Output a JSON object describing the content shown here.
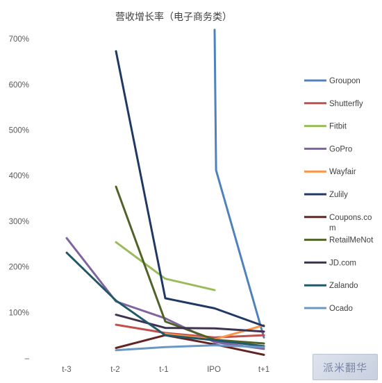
{
  "chart_data": {
    "type": "line",
    "title": "营收增长率（电子商务类）",
    "categories": [
      "t-3",
      "t-2",
      "t-1",
      "IPO",
      "t+1"
    ],
    "y_ticks": [
      "–",
      "100%",
      "200%",
      "300%",
      "400%",
      "500%",
      "600%",
      "700%"
    ],
    "ylim": [
      0,
      700
    ],
    "grid": false,
    "legend_position": "right",
    "series": [
      {
        "name": "Groupon",
        "color": "#4f81bd",
        "values": [
          null,
          null,
          null,
          720,
          45
        ],
        "extra_points": [
          {
            "x": 3.03,
            "y": 412
          }
        ]
      },
      {
        "name": "Shutterfly",
        "color": "#c0504d",
        "values": [
          null,
          73,
          55,
          45,
          50
        ]
      },
      {
        "name": "Fitbit",
        "color": "#9bbb59",
        "values": [
          null,
          254,
          174,
          149,
          null
        ]
      },
      {
        "name": "GoPro",
        "color": "#8064a2",
        "values": [
          263,
          124,
          87,
          35,
          20
        ]
      },
      {
        "name": "Wayfair",
        "color": "#f79646",
        "values": [
          null,
          null,
          53,
          41,
          72
        ]
      },
      {
        "name": "Zulily",
        "color": "#1f3864",
        "values": [
          null,
          673,
          131,
          109,
          70
        ]
      },
      {
        "name": "Coupons.com",
        "color": "#632523",
        "values": [
          null,
          22,
          50,
          30,
          7
        ]
      },
      {
        "name": "RetailMeNot",
        "color": "#4f6228",
        "values": [
          null,
          376,
          80,
          40,
          32
        ]
      },
      {
        "name": "JD.com",
        "color": "#3f3151",
        "values": [
          null,
          95,
          66,
          65,
          58
        ]
      },
      {
        "name": "Zalando",
        "color": "#215968",
        "values": [
          231,
          126,
          50,
          39,
          26
        ]
      },
      {
        "name": "Ocado",
        "color": "#6a97c4",
        "values": [
          null,
          17,
          24,
          28,
          24
        ]
      }
    ]
  },
  "watermark": "派米翻华"
}
